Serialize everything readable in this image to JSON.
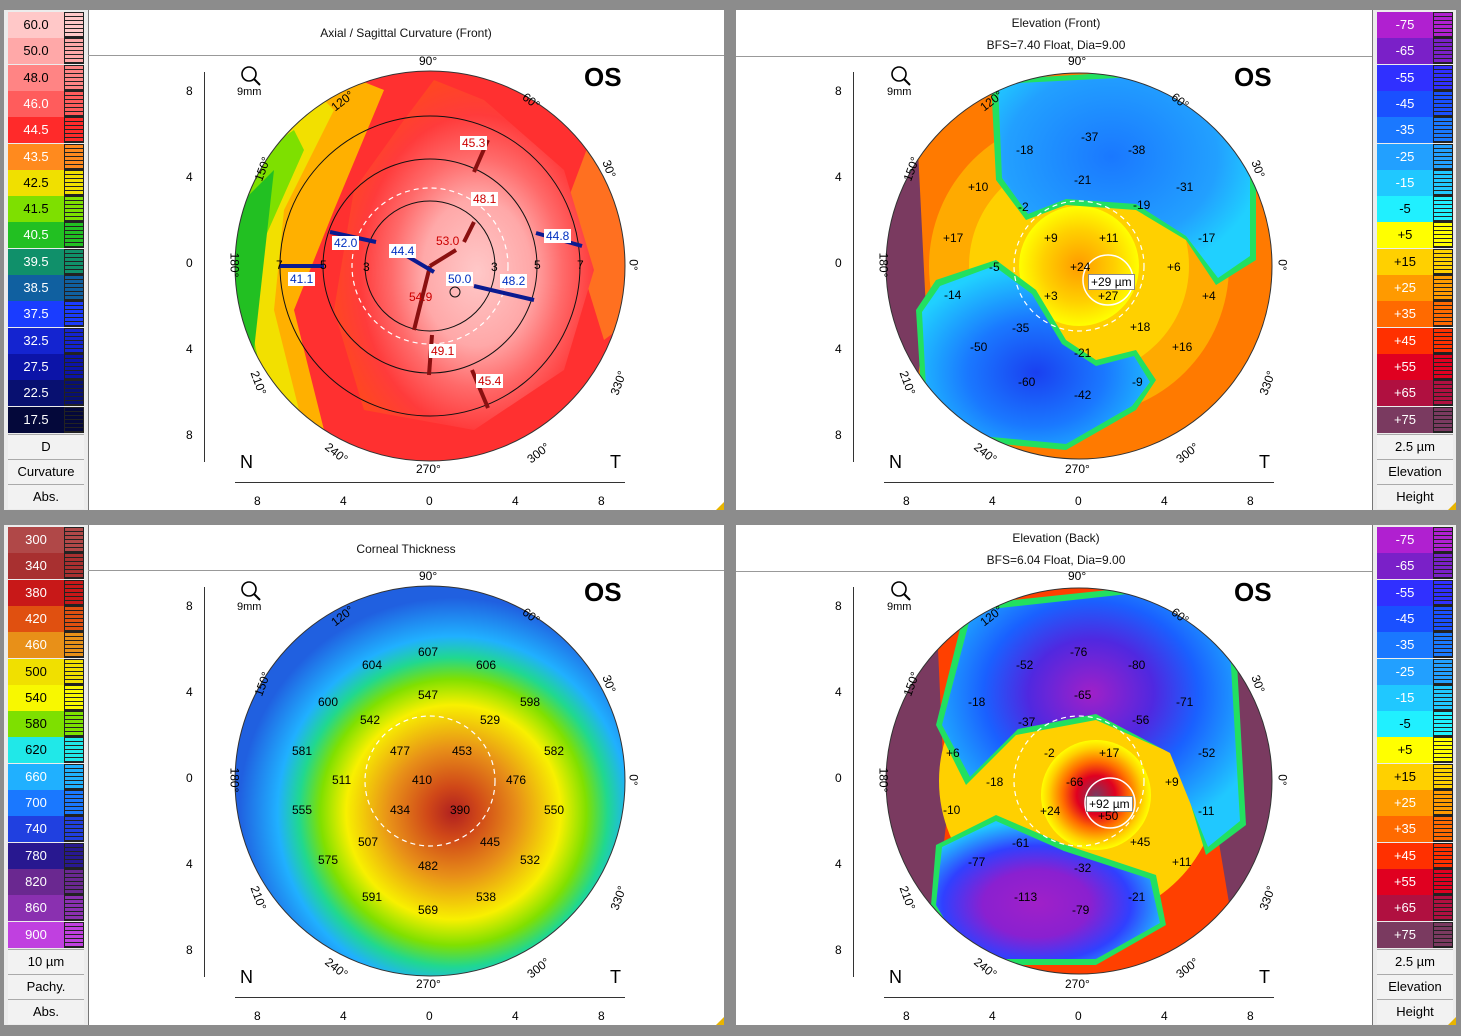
{
  "panels": {
    "tl": {
      "title": "Axial / Sagittal Curvature (Front)",
      "subtitle": "",
      "eye": "OS",
      "zoom": "9mm",
      "scale": {
        "values": [
          "60.0",
          "50.0",
          "48.0",
          "46.0",
          "44.5",
          "43.5",
          "42.5",
          "41.5",
          "40.5",
          "39.5",
          "38.5",
          "37.5",
          "32.5",
          "27.5",
          "22.5",
          "17.5"
        ],
        "colors": [
          "#ffc8c8",
          "#ffa8a8",
          "#ff8484",
          "#ff5c5c",
          "#ff2a2a",
          "#ff8a1e",
          "#f0e000",
          "#7ee000",
          "#22c022",
          "#10906a",
          "#1060a0",
          "#1a3cff",
          "#1424d0",
          "#0c14a8",
          "#081070",
          "#04083a"
        ],
        "unit": "D",
        "type": "Curvature",
        "mode": "Abs."
      },
      "readings": [
        "45.3",
        "48.1",
        "53.0",
        "42.0",
        "44.4",
        "50.0",
        "48.2",
        "44.8",
        "41.1",
        "54.9",
        "49.1",
        "45.4"
      ]
    },
    "tr": {
      "title": "Elevation (Front)",
      "subtitle": "BFS=7.40 Float, Dia=9.00",
      "eye": "OS",
      "zoom": "9mm",
      "scale": {
        "values": [
          "-75",
          "-65",
          "-55",
          "-45",
          "-35",
          "-25",
          "-15",
          "-5",
          "+5",
          "+15",
          "+25",
          "+35",
          "+45",
          "+55",
          "+65",
          "+75"
        ],
        "colors": [
          "#b020d0",
          "#7a20c8",
          "#3030ff",
          "#1a50ff",
          "#1a78ff",
          "#22a0ff",
          "#20c8ff",
          "#20f0ff",
          "#ffff00",
          "#ffd000",
          "#ff9a00",
          "#ff6a00",
          "#ff3000",
          "#e00020",
          "#b01040",
          "#7a3a60"
        ],
        "unit": "2.5 µm",
        "type": "Elevation",
        "mode": "Height"
      },
      "readings": [
        "-37",
        "-18",
        "-38",
        "-21",
        "+10",
        "-31",
        "-19",
        "-2",
        "+17",
        "+9",
        "+11",
        "-17",
        "+24",
        "-5",
        "+6",
        "+29 µm",
        "+27",
        "+4",
        "-14",
        "+3",
        "-35",
        "+18",
        "-50",
        "-21",
        "+16",
        "-60",
        "-42",
        "-9"
      ]
    },
    "bl": {
      "title": "Corneal Thickness",
      "subtitle": "",
      "eye": "OS",
      "zoom": "9mm",
      "scale": {
        "values": [
          "300",
          "340",
          "380",
          "420",
          "460",
          "500",
          "540",
          "580",
          "620",
          "660",
          "700",
          "740",
          "780",
          "820",
          "860",
          "900"
        ],
        "colors": [
          "#b04848",
          "#a83030",
          "#c81818",
          "#e05010",
          "#e89018",
          "#f0e000",
          "#f8f800",
          "#7ee000",
          "#20e8e8",
          "#20b0ff",
          "#1a78ff",
          "#2040e0",
          "#281890",
          "#6a2890",
          "#8a30b0",
          "#c040e0"
        ],
        "unit": "10 µm",
        "type": "Pachy.",
        "mode": "Abs."
      },
      "readings": [
        "607",
        "604",
        "606",
        "547",
        "600",
        "598",
        "542",
        "529",
        "477",
        "453",
        "581",
        "582",
        "511",
        "410",
        "476",
        "555",
        "434",
        "390",
        "550",
        "507",
        "445",
        "575",
        "482",
        "532",
        "591",
        "538",
        "569"
      ]
    },
    "br": {
      "title": "Elevation (Back)",
      "subtitle": "BFS=6.04 Float, Dia=9.00",
      "eye": "OS",
      "zoom": "9mm",
      "scale": {
        "values": [
          "-75",
          "-65",
          "-55",
          "-45",
          "-35",
          "-25",
          "-15",
          "-5",
          "+5",
          "+15",
          "+25",
          "+35",
          "+45",
          "+55",
          "+65",
          "+75"
        ],
        "colors": [
          "#b020d0",
          "#7a20c8",
          "#3030ff",
          "#1a50ff",
          "#1a78ff",
          "#22a0ff",
          "#20c8ff",
          "#20f0ff",
          "#ffff00",
          "#ffd000",
          "#ff9a00",
          "#ff6a00",
          "#ff3000",
          "#e00020",
          "#b01040",
          "#7a3a60"
        ],
        "unit": "2.5 µm",
        "type": "Elevation",
        "mode": "Height"
      },
      "readings": [
        "-76",
        "-52",
        "-80",
        "-65",
        "-18",
        "-71",
        "-37",
        "-56",
        "-2",
        "+17",
        "-52",
        "+6",
        "-18",
        "-66",
        "+9",
        "+92 µm",
        "+50",
        "-10",
        "+24",
        "-11",
        "-61",
        "+45",
        "-77",
        "-32",
        "+11",
        "-113",
        "-79",
        "-21"
      ]
    }
  },
  "common": {
    "top_angle": "90°",
    "bottom_angle": "270°",
    "left_angle": "180°",
    "right_angle": "0°",
    "angle_labels": [
      "120°",
      "60°",
      "150°",
      "30°",
      "210°",
      "330°",
      "240°",
      "300°"
    ],
    "left_axis": [
      "8",
      "4",
      "0",
      "4",
      "8"
    ],
    "bottom_axis": [
      "8",
      "4",
      "0",
      "4",
      "8"
    ],
    "nasal": "N",
    "temporal": "T",
    "ring_labels": [
      "7",
      "5",
      "3",
      "3",
      "5",
      "7"
    ]
  }
}
